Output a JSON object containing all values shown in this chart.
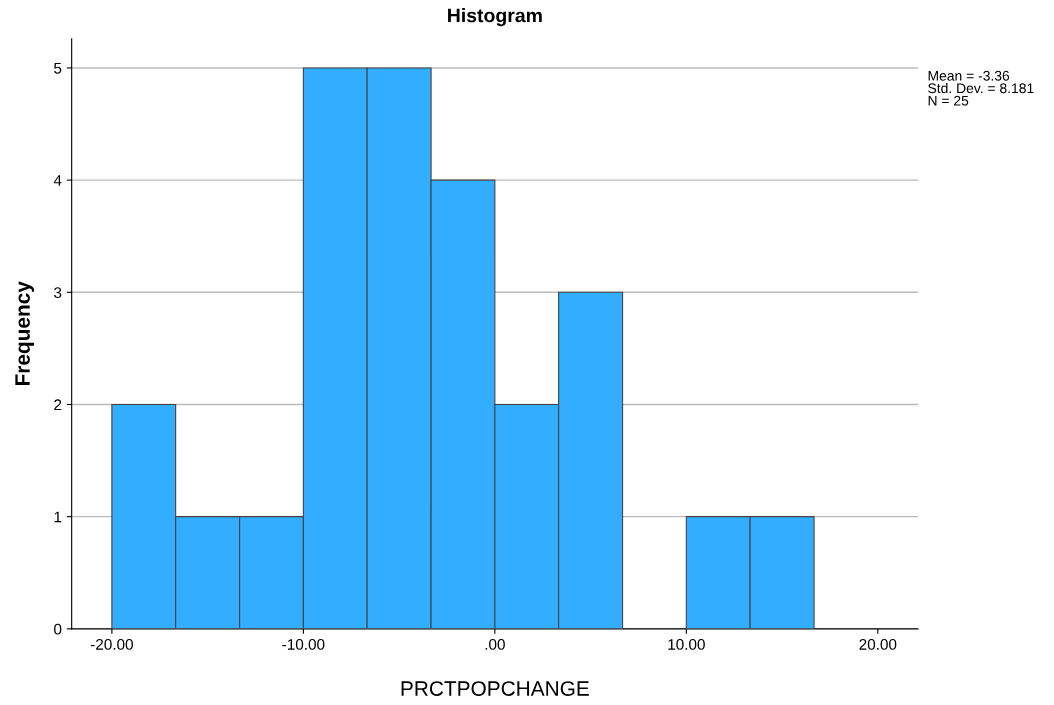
{
  "chart_data": {
    "type": "histogram",
    "title": "Histogram",
    "xlabel": "PRCTPOPCHANGE",
    "ylabel": "Frequency",
    "bins": [
      -20,
      -16.67,
      -13.33,
      -10,
      -6.67,
      -3.33,
      0,
      3.33,
      6.67,
      10,
      13.33,
      16.67
    ],
    "values": [
      2,
      1,
      1,
      5,
      5,
      4,
      2,
      3,
      0,
      1,
      1
    ],
    "color": "#33adff",
    "xlim": [
      -22.1,
      22.1
    ],
    "xticks": [
      {
        "value": -20,
        "label": "-20.00"
      },
      {
        "value": -10,
        "label": "-10.00"
      },
      {
        "value": 0,
        "label": ".00"
      },
      {
        "value": 10,
        "label": "10.00"
      },
      {
        "value": 20,
        "label": "20.00"
      }
    ],
    "ylim": [
      0,
      5.26
    ],
    "yticks": [
      0,
      1,
      2,
      3,
      4,
      5
    ],
    "grid": "y",
    "annotations": [
      "Mean = -3.36\nStd. Dev. = 8.181\nN = 25"
    ]
  }
}
